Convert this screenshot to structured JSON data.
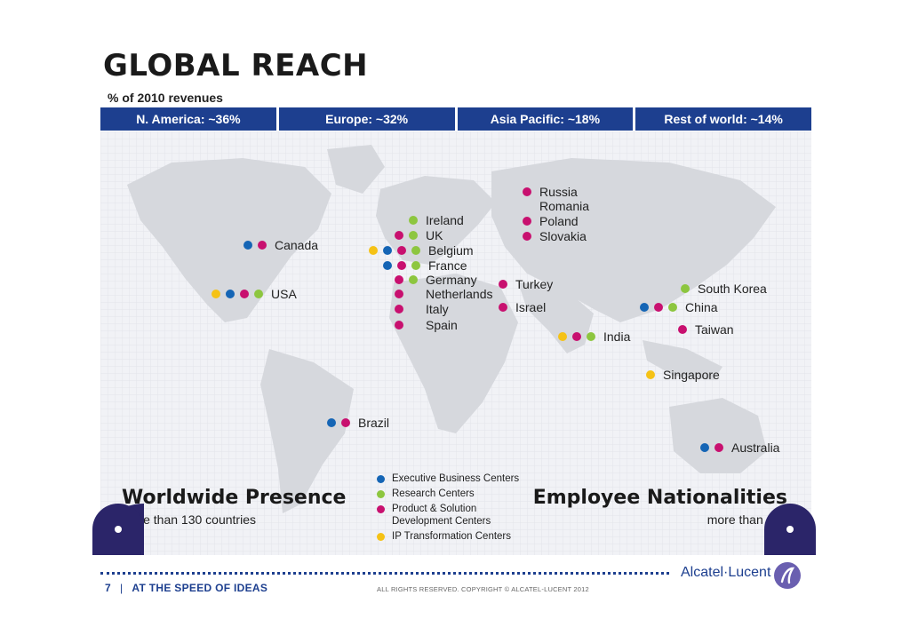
{
  "title": "GLOBAL REACH",
  "subtitle": "% of 2010 revenues",
  "regions": [
    {
      "label": "N. America: ~36%"
    },
    {
      "label": "Europe: ~32%"
    },
    {
      "label": "Asia Pacific: ~18%"
    },
    {
      "label": "Rest of world: ~14%"
    }
  ],
  "countries": {
    "russia": "Russia",
    "romania": "Romania",
    "poland": "Poland",
    "slovakia": "Slovakia",
    "ireland": "Ireland",
    "uk": "UK",
    "belgium": "Belgium",
    "france": "France",
    "germany": "Germany",
    "netherlands": "Netherlands",
    "italy": "Italy",
    "spain": "Spain",
    "canada": "Canada",
    "usa": "USA",
    "turkey": "Turkey",
    "israel": "Israel",
    "india": "India",
    "south_korea": "South Korea",
    "china": "China",
    "taiwan": "Taiwan",
    "singapore": "Singapore",
    "brazil": "Brazil",
    "australia": "Australia"
  },
  "legend": {
    "executive": "Executive Business Centers",
    "research": "Research Centers",
    "product_line1": "Product & Solution",
    "product_line2": "Development Centers",
    "ip": "IP Transformation Centers"
  },
  "worldwide": {
    "title": "Worldwide Presence",
    "sub": "more than 130 countries"
  },
  "nationalities": {
    "title": "Employee Nationalities",
    "sub": "more than 100"
  },
  "brand": "Alcatel·Lucent",
  "footer": {
    "page": "7",
    "divider": "|",
    "tagline": "AT THE SPEED OF IDEAS",
    "copyright": "ALL RIGHTS RESERVED. COPYRIGHT © ALCATEL-LUCENT 2012"
  },
  "colors": {
    "executive": "#1565b5",
    "research": "#8dc63f",
    "product": "#c8106f",
    "ip": "#f5c216",
    "brand_blue": "#1d3f8f"
  }
}
